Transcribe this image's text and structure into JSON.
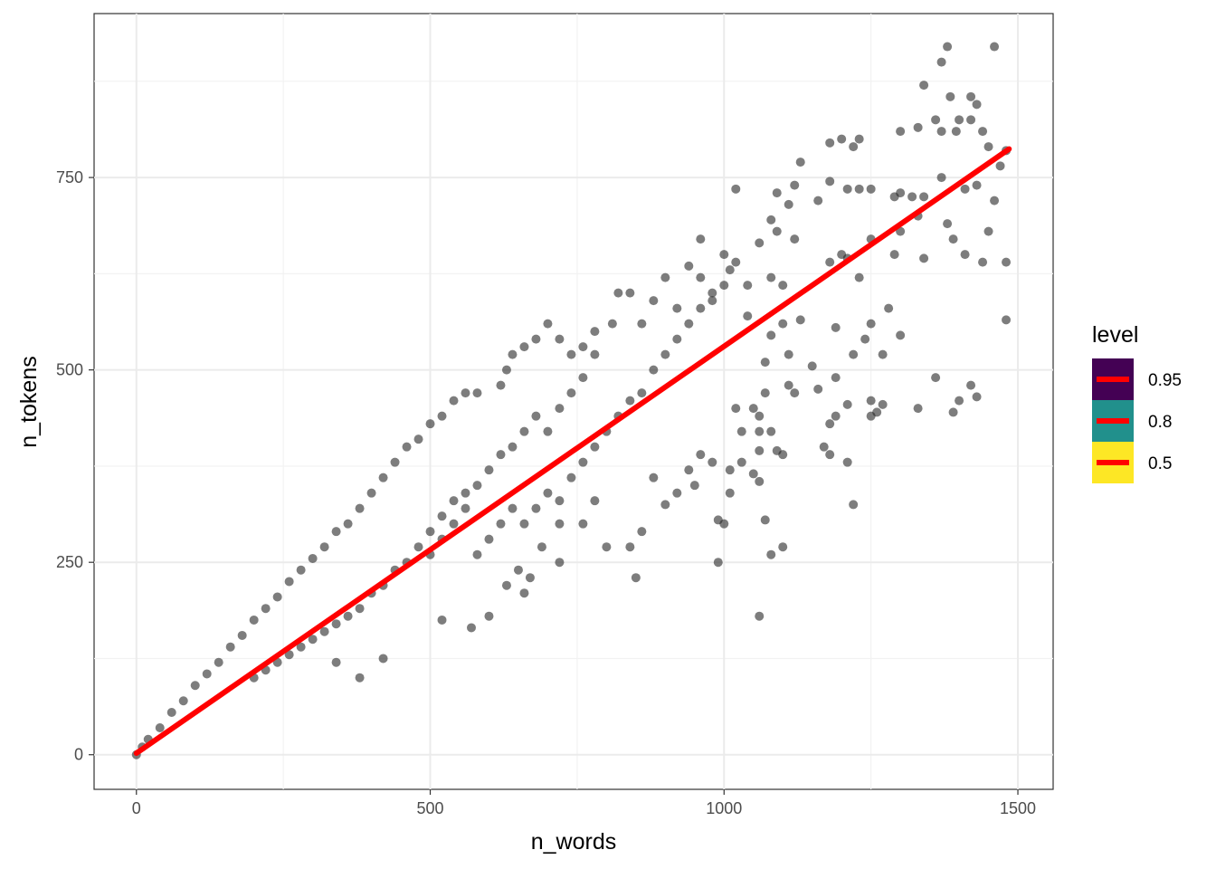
{
  "chart_data": {
    "type": "scatter",
    "title": "",
    "xlabel": "n_words",
    "ylabel": "n_tokens",
    "xlim": [
      -72,
      1560
    ],
    "ylim": [
      -45,
      963
    ],
    "x_ticks": [
      0,
      500,
      1000,
      1500
    ],
    "y_ticks": [
      0,
      250,
      500,
      750
    ],
    "x_tick_labels": [
      "0",
      "500",
      "1000",
      "1500"
    ],
    "y_tick_labels": [
      "0",
      "250",
      "500",
      "750"
    ],
    "grid": true,
    "point_color": "#262626",
    "points": [
      [
        1380,
        920
      ],
      [
        1460,
        920
      ],
      [
        1370,
        900
      ],
      [
        1340,
        870
      ],
      [
        1385,
        855
      ],
      [
        1420,
        855
      ],
      [
        1430,
        845
      ],
      [
        1360,
        825
      ],
      [
        1420,
        825
      ],
      [
        1330,
        815
      ],
      [
        1400,
        825
      ],
      [
        1370,
        810
      ],
      [
        1395,
        810
      ],
      [
        1440,
        810
      ],
      [
        1300,
        810
      ],
      [
        1200,
        800
      ],
      [
        1230,
        800
      ],
      [
        1220,
        790
      ],
      [
        1180,
        795
      ],
      [
        1480,
        785
      ],
      [
        1450,
        790
      ],
      [
        1470,
        765
      ],
      [
        1130,
        770
      ],
      [
        1180,
        745
      ],
      [
        1120,
        740
      ],
      [
        1230,
        735
      ],
      [
        1210,
        735
      ],
      [
        1250,
        735
      ],
      [
        1300,
        730
      ],
      [
        1290,
        725
      ],
      [
        1320,
        725
      ],
      [
        1340,
        725
      ],
      [
        1410,
        735
      ],
      [
        1430,
        740
      ],
      [
        1460,
        720
      ],
      [
        1020,
        735
      ],
      [
        1090,
        730
      ],
      [
        1110,
        715
      ],
      [
        1160,
        720
      ],
      [
        1080,
        695
      ],
      [
        1090,
        680
      ],
      [
        1120,
        670
      ],
      [
        1200,
        650
      ],
      [
        1250,
        670
      ],
      [
        1300,
        680
      ],
      [
        1330,
        700
      ],
      [
        1370,
        750
      ],
      [
        1380,
        690
      ],
      [
        1390,
        670
      ],
      [
        1410,
        650
      ],
      [
        1440,
        640
      ],
      [
        1450,
        680
      ],
      [
        1480,
        640
      ],
      [
        1060,
        665
      ],
      [
        1020,
        640
      ],
      [
        960,
        670
      ],
      [
        1000,
        650
      ],
      [
        1010,
        630
      ],
      [
        1040,
        610
      ],
      [
        940,
        635
      ],
      [
        960,
        620
      ],
      [
        980,
        590
      ],
      [
        1000,
        610
      ],
      [
        1080,
        620
      ],
      [
        1100,
        610
      ],
      [
        1180,
        640
      ],
      [
        1210,
        645
      ],
      [
        1230,
        620
      ],
      [
        1290,
        650
      ],
      [
        1340,
        645
      ],
      [
        1100,
        560
      ],
      [
        1130,
        565
      ],
      [
        1040,
        570
      ],
      [
        1080,
        545
      ],
      [
        1110,
        520
      ],
      [
        1070,
        510
      ],
      [
        1150,
        505
      ],
      [
        1190,
        490
      ],
      [
        1280,
        580
      ],
      [
        1250,
        560
      ],
      [
        1240,
        540
      ],
      [
        1270,
        520
      ],
      [
        1300,
        545
      ],
      [
        1220,
        520
      ],
      [
        1190,
        555
      ],
      [
        1480,
        565
      ],
      [
        1420,
        480
      ],
      [
        1430,
        465
      ],
      [
        1400,
        460
      ],
      [
        1390,
        445
      ],
      [
        1360,
        490
      ],
      [
        1330,
        450
      ],
      [
        1260,
        445
      ],
      [
        1250,
        440
      ],
      [
        1250,
        460
      ],
      [
        1270,
        455
      ],
      [
        1210,
        455
      ],
      [
        1190,
        440
      ],
      [
        1180,
        430
      ],
      [
        1160,
        475
      ],
      [
        1120,
        470
      ],
      [
        1110,
        480
      ],
      [
        1070,
        470
      ],
      [
        1050,
        450
      ],
      [
        1060,
        440
      ],
      [
        1020,
        450
      ],
      [
        1030,
        420
      ],
      [
        1060,
        420
      ],
      [
        1080,
        420
      ],
      [
        1090,
        395
      ],
      [
        1100,
        390
      ],
      [
        1180,
        390
      ],
      [
        1170,
        400
      ],
      [
        1210,
        380
      ],
      [
        1220,
        325
      ],
      [
        1060,
        395
      ],
      [
        1030,
        380
      ],
      [
        1010,
        370
      ],
      [
        1050,
        365
      ],
      [
        1060,
        355
      ],
      [
        1010,
        340
      ],
      [
        1000,
        300
      ],
      [
        990,
        305
      ],
      [
        990,
        250
      ],
      [
        1070,
        305
      ],
      [
        1080,
        260
      ],
      [
        1100,
        270
      ],
      [
        1060,
        180
      ],
      [
        900,
        325
      ],
      [
        880,
        360
      ],
      [
        940,
        370
      ],
      [
        960,
        390
      ],
      [
        980,
        380
      ],
      [
        950,
        350
      ],
      [
        920,
        340
      ],
      [
        840,
        270
      ],
      [
        800,
        270
      ],
      [
        860,
        290
      ],
      [
        760,
        300
      ],
      [
        720,
        250
      ],
      [
        850,
        230
      ],
      [
        780,
        330
      ],
      [
        720,
        300
      ],
      [
        690,
        270
      ],
      [
        670,
        230
      ],
      [
        660,
        210
      ],
      [
        650,
        240
      ],
      [
        630,
        220
      ],
      [
        600,
        180
      ],
      [
        570,
        165
      ],
      [
        520,
        175
      ],
      [
        420,
        125
      ],
      [
        380,
        100
      ],
      [
        340,
        120
      ],
      [
        900,
        620
      ],
      [
        920,
        580
      ],
      [
        880,
        590
      ],
      [
        860,
        560
      ],
      [
        840,
        600
      ],
      [
        820,
        600
      ],
      [
        810,
        560
      ],
      [
        780,
        550
      ],
      [
        760,
        530
      ],
      [
        740,
        520
      ],
      [
        720,
        540
      ],
      [
        700,
        560
      ],
      [
        680,
        540
      ],
      [
        660,
        530
      ],
      [
        640,
        520
      ],
      [
        630,
        500
      ],
      [
        620,
        480
      ],
      [
        580,
        470
      ],
      [
        560,
        470
      ],
      [
        540,
        460
      ],
      [
        520,
        440
      ],
      [
        500,
        430
      ],
      [
        480,
        410
      ],
      [
        460,
        400
      ],
      [
        440,
        380
      ],
      [
        420,
        360
      ],
      [
        400,
        340
      ],
      [
        380,
        320
      ],
      [
        360,
        300
      ],
      [
        340,
        290
      ],
      [
        320,
        270
      ],
      [
        300,
        255
      ],
      [
        280,
        240
      ],
      [
        260,
        225
      ],
      [
        240,
        205
      ],
      [
        220,
        190
      ],
      [
        200,
        175
      ],
      [
        180,
        155
      ],
      [
        160,
        140
      ],
      [
        140,
        120
      ],
      [
        120,
        105
      ],
      [
        100,
        90
      ],
      [
        80,
        70
      ],
      [
        60,
        55
      ],
      [
        40,
        35
      ],
      [
        20,
        20
      ],
      [
        10,
        10
      ],
      [
        0,
        0
      ],
      [
        500,
        260
      ],
      [
        520,
        280
      ],
      [
        540,
        300
      ],
      [
        560,
        320
      ],
      [
        580,
        260
      ],
      [
        600,
        280
      ],
      [
        620,
        300
      ],
      [
        640,
        320
      ],
      [
        660,
        300
      ],
      [
        680,
        320
      ],
      [
        700,
        340
      ],
      [
        720,
        330
      ],
      [
        740,
        360
      ],
      [
        760,
        380
      ],
      [
        780,
        400
      ],
      [
        800,
        420
      ],
      [
        820,
        440
      ],
      [
        840,
        460
      ],
      [
        860,
        470
      ],
      [
        880,
        500
      ],
      [
        900,
        520
      ],
      [
        920,
        540
      ],
      [
        940,
        560
      ],
      [
        960,
        580
      ],
      [
        980,
        600
      ],
      [
        700,
        420
      ],
      [
        720,
        450
      ],
      [
        740,
        470
      ],
      [
        760,
        490
      ],
      [
        780,
        520
      ],
      [
        620,
        390
      ],
      [
        640,
        400
      ],
      [
        660,
        420
      ],
      [
        680,
        440
      ],
      [
        600,
        370
      ],
      [
        580,
        350
      ],
      [
        560,
        340
      ],
      [
        540,
        330
      ],
      [
        520,
        310
      ],
      [
        500,
        290
      ],
      [
        480,
        270
      ],
      [
        460,
        250
      ],
      [
        440,
        240
      ],
      [
        420,
        220
      ],
      [
        400,
        210
      ],
      [
        380,
        190
      ],
      [
        360,
        180
      ],
      [
        340,
        170
      ],
      [
        320,
        160
      ],
      [
        300,
        150
      ],
      [
        280,
        140
      ],
      [
        260,
        130
      ],
      [
        240,
        120
      ],
      [
        220,
        110
      ],
      [
        200,
        100
      ]
    ],
    "trend_line": {
      "color": "#ff0000",
      "start": [
        0,
        2
      ],
      "end": [
        1485,
        787
      ]
    },
    "legend": {
      "title": "level",
      "position": "right",
      "items": [
        {
          "label": "0.95",
          "fill": "#440154"
        },
        {
          "label": "0.8",
          "fill": "#21908c"
        },
        {
          "label": "0.5",
          "fill": "#fde725"
        }
      ],
      "line_color": "#ff0000"
    }
  }
}
